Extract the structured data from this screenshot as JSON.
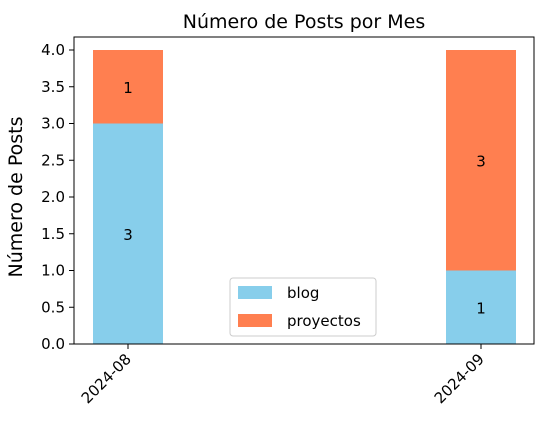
{
  "chart_data": {
    "type": "bar",
    "stacked": true,
    "title": "Número de Posts por Mes",
    "xlabel": "",
    "ylabel": "Número de Posts",
    "categories": [
      "2024-08",
      "2024-09"
    ],
    "series": [
      {
        "name": "blog",
        "values": [
          3,
          1
        ],
        "color": "#87CEEB"
      },
      {
        "name": "proyectos",
        "values": [
          1,
          3
        ],
        "color": "#FF7F50"
      }
    ],
    "ylim": [
      0,
      4.0
    ],
    "yticks": [
      "0.0",
      "0.5",
      "1.0",
      "1.5",
      "2.0",
      "2.5",
      "3.0",
      "3.5",
      "4.0"
    ],
    "grid": false,
    "legend_position": "bottom-center"
  }
}
